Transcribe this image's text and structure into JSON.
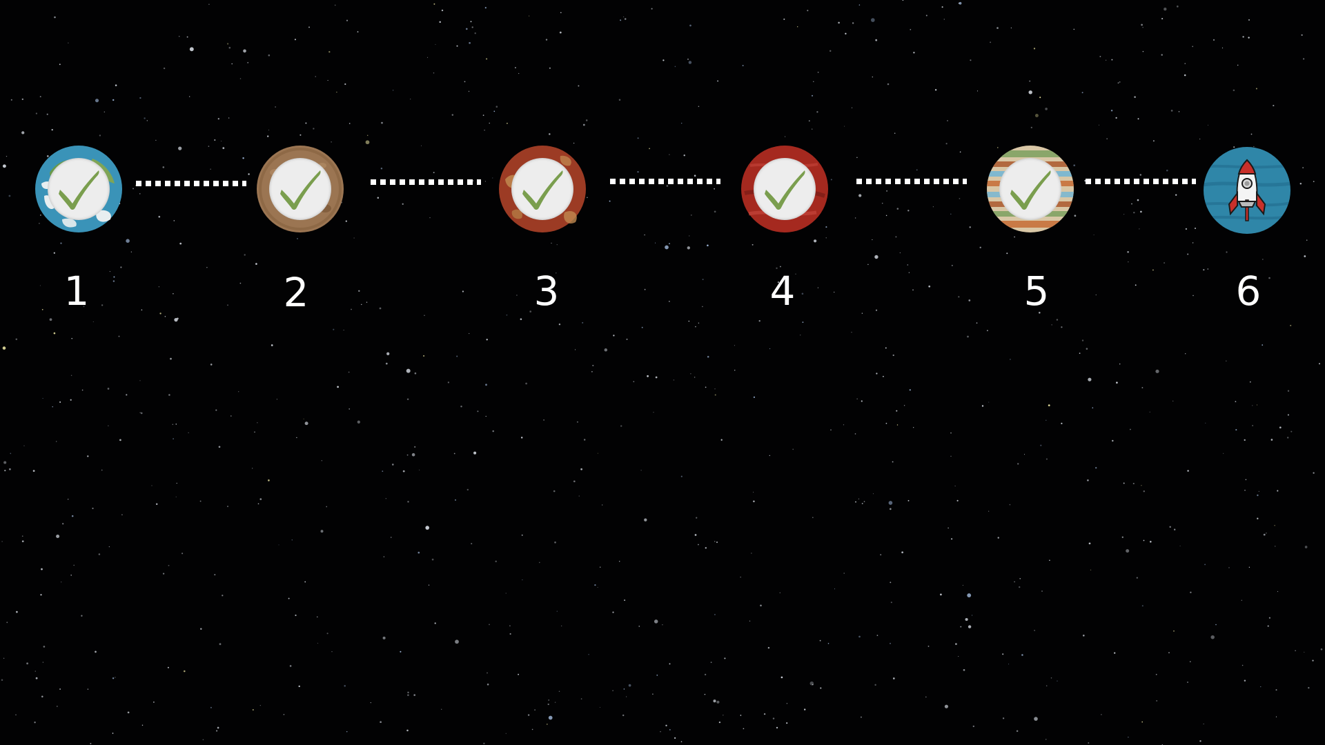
{
  "levels": [
    {
      "number": "1",
      "planet": "earth",
      "status": "completed",
      "icon": "checkmark-icon"
    },
    {
      "number": "2",
      "planet": "brown-planet",
      "status": "completed",
      "icon": "checkmark-icon"
    },
    {
      "number": "3",
      "planet": "rusty-planet",
      "status": "completed",
      "icon": "checkmark-icon"
    },
    {
      "number": "4",
      "planet": "red-planet",
      "status": "completed",
      "icon": "checkmark-icon"
    },
    {
      "number": "5",
      "planet": "banded-gas-giant",
      "status": "completed",
      "icon": "checkmark-icon"
    },
    {
      "number": "6",
      "planet": "blue-planet",
      "status": "current",
      "icon": "rocket-icon"
    }
  ],
  "colors": {
    "background": "#020203",
    "connector": "#ffffff",
    "checkmark": "#7a9e4e",
    "badge": "#ededed",
    "label": "#ffffff"
  }
}
